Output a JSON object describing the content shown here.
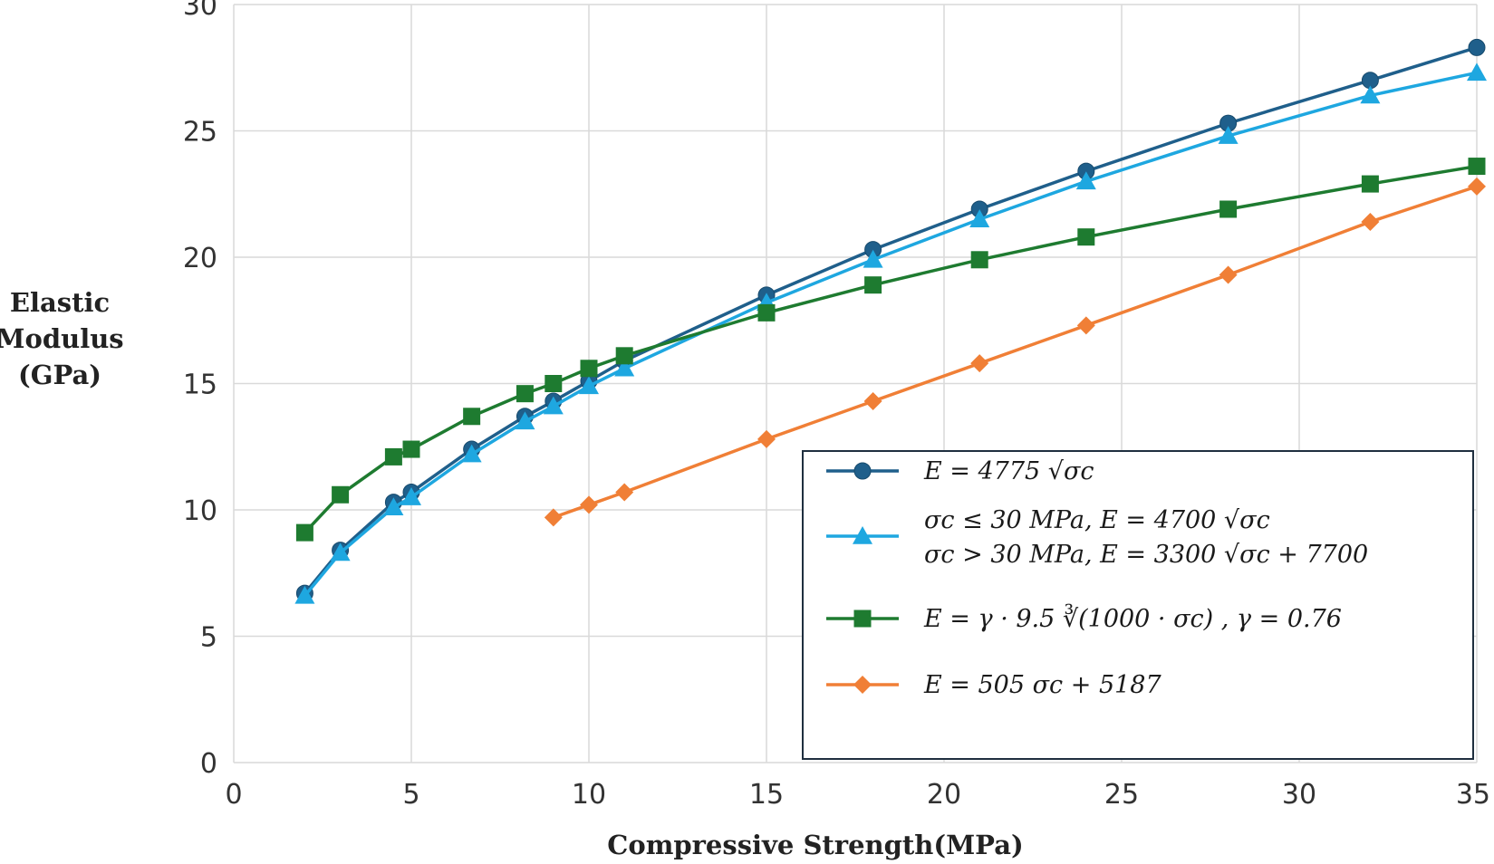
{
  "chart_data": {
    "type": "line",
    "xlabel": "Compressive Strength(MPa)",
    "ylabel_lines": [
      "Elastic",
      "Modulus",
      "(GPa)"
    ],
    "xlim": [
      0,
      35
    ],
    "ylim": [
      0,
      30
    ],
    "xticks": [
      0,
      5,
      10,
      15,
      20,
      25,
      30,
      35
    ],
    "yticks": [
      0,
      5,
      10,
      15,
      20,
      25,
      30
    ],
    "grid": true,
    "legend_position": "bottom-right",
    "series": [
      {
        "name": "E = 4775 √σc",
        "legend_lines": [
          "E = 4775 √σc"
        ],
        "color": "#1f5f8b",
        "marker": "circle",
        "x": [
          2,
          3,
          4.5,
          5,
          6.7,
          8.2,
          9,
          10,
          11,
          15,
          18,
          21,
          24,
          28,
          32,
          35
        ],
        "y": [
          6.7,
          8.4,
          10.3,
          10.7,
          12.4,
          13.7,
          14.3,
          15.1,
          15.9,
          18.5,
          20.3,
          21.9,
          23.4,
          25.3,
          27.0,
          28.3
        ]
      },
      {
        "name": "σc ≤ 30 MPa, E = 4700 √σc ; σc > 30 MPa, E = 3300 √σc + 7700",
        "legend_lines": [
          "σc  ≤ 30 MPa, E = 4700 √σc",
          "σc  > 30 MPa, E = 3300 √σc + 7700"
        ],
        "color": "#1ea7e0",
        "marker": "triangle",
        "x": [
          2,
          3,
          4.5,
          5,
          6.7,
          8.2,
          9,
          10,
          11,
          15,
          18,
          21,
          24,
          28,
          32,
          35
        ],
        "y": [
          6.6,
          8.3,
          10.1,
          10.5,
          12.2,
          13.5,
          14.1,
          14.9,
          15.6,
          18.2,
          19.9,
          21.5,
          23.0,
          24.8,
          26.4,
          27.3
        ]
      },
      {
        "name": "E = γ · 9.5 ∛(1000 · σc) , γ = 0.76",
        "legend_lines": [
          "E = γ  · 9.5 ∛(1000 · σc) ,  γ  = 0.76"
        ],
        "color": "#1e7b30",
        "marker": "square",
        "x": [
          2,
          3,
          4.5,
          5,
          6.7,
          8.2,
          9,
          10,
          11,
          15,
          18,
          21,
          24,
          28,
          32,
          35
        ],
        "y": [
          9.1,
          10.6,
          12.1,
          12.4,
          13.7,
          14.6,
          15.0,
          15.6,
          16.1,
          17.8,
          18.9,
          19.9,
          20.8,
          21.9,
          22.9,
          23.6
        ]
      },
      {
        "name": "E = 505 σc + 5187",
        "legend_lines": [
          "E = 505 σc + 5187"
        ],
        "color": "#f07f36",
        "marker": "diamond",
        "x": [
          9,
          10,
          11,
          15,
          18,
          21,
          24,
          28,
          32,
          35
        ],
        "y": [
          9.7,
          10.2,
          10.7,
          12.8,
          14.3,
          15.8,
          17.3,
          19.3,
          21.4,
          22.8
        ]
      }
    ]
  }
}
